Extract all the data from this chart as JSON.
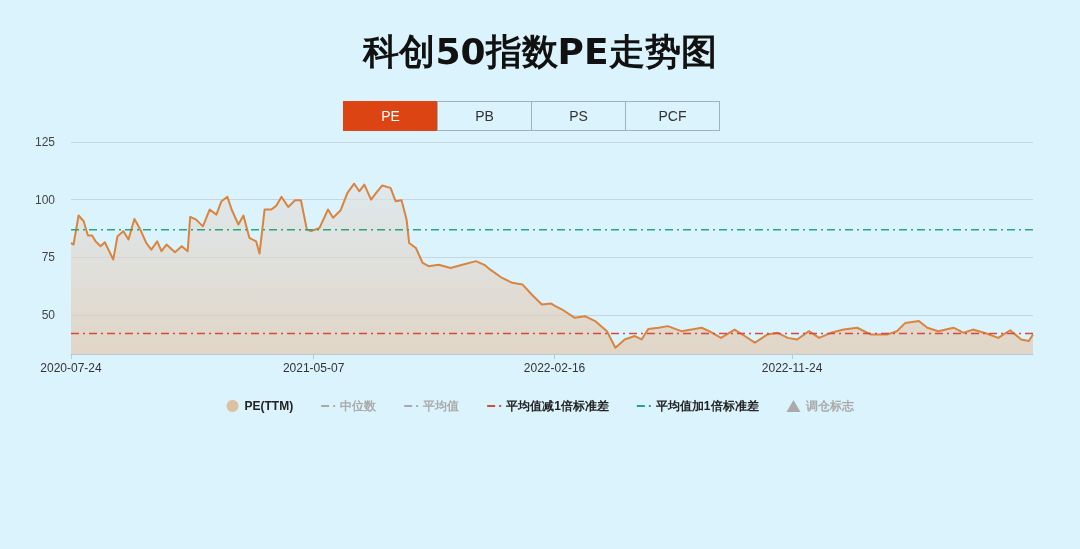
{
  "chart_data": {
    "type": "area",
    "title": "科创50指数PE走势图",
    "xlim": [
      "2020-07-24",
      "2023-09-05"
    ],
    "xticks": [
      "2020-07-24",
      "2021-05-07",
      "2022-02-16",
      "2022-11-24"
    ],
    "ylim": [
      33,
      125
    ],
    "yticks": [
      50,
      75,
      100,
      125
    ],
    "grid": "y",
    "legend": "bottom",
    "marker": "none",
    "line_style": "solid",
    "x": [
      "2020-07-24",
      "2020-07-27",
      "2020-08-02",
      "2020-08-08",
      "2020-08-13",
      "2020-08-18",
      "2020-08-22",
      "2020-08-28",
      "2020-09-02",
      "2020-09-12",
      "2020-09-17",
      "2020-09-24",
      "2020-09-30",
      "2020-10-07",
      "2020-10-14",
      "2020-10-21",
      "2020-10-27",
      "2020-11-03",
      "2020-11-08",
      "2020-11-14",
      "2020-11-24",
      "2020-12-02",
      "2020-12-09",
      "2020-12-12",
      "2020-12-19",
      "2020-12-27",
      "2021-01-04",
      "2021-01-12",
      "2021-01-18",
      "2021-01-25",
      "2021-01-30",
      "2021-02-07",
      "2021-02-13",
      "2021-02-20",
      "2021-02-28",
      "2021-03-04",
      "2021-03-10",
      "2021-03-18",
      "2021-03-24",
      "2021-03-30",
      "2021-04-07",
      "2021-04-15",
      "2021-04-22",
      "2021-04-29",
      "2021-05-04",
      "2021-05-14",
      "2021-05-24",
      "2021-05-30",
      "2021-06-08",
      "2021-06-16",
      "2021-06-24",
      "2021-06-30",
      "2021-07-06",
      "2021-07-14",
      "2021-07-20",
      "2021-07-27",
      "2021-08-06",
      "2021-08-12",
      "2021-08-19",
      "2021-08-25",
      "2021-08-28",
      "2021-09-05",
      "2021-09-13",
      "2021-09-20",
      "2021-10-02",
      "2021-10-16",
      "2021-10-30",
      "2021-11-15",
      "2021-11-25",
      "2021-12-02",
      "2021-12-16",
      "2021-12-28",
      "2022-01-09",
      "2022-01-20",
      "2022-02-01",
      "2022-02-12",
      "2022-02-17",
      "2022-02-25",
      "2022-03-12",
      "2022-03-24",
      "2022-04-05",
      "2022-04-19",
      "2022-04-29",
      "2022-05-10",
      "2022-05-22",
      "2022-05-30",
      "2022-06-07",
      "2022-06-19",
      "2022-06-30",
      "2022-07-16",
      "2022-07-28",
      "2022-08-09",
      "2022-08-18",
      "2022-09-01",
      "2022-09-17",
      "2022-09-29",
      "2022-10-11",
      "2022-10-26",
      "2022-11-07",
      "2022-11-19",
      "2022-11-30",
      "2022-12-14",
      "2022-12-26",
      "2023-01-09",
      "2023-01-24",
      "2023-02-09",
      "2023-02-25",
      "2023-03-17",
      "2023-03-28",
      "2023-04-07",
      "2023-04-23",
      "2023-05-03",
      "2023-05-16",
      "2023-06-03",
      "2023-06-15",
      "2023-06-26",
      "2023-07-12",
      "2023-07-26",
      "2023-08-09",
      "2023-08-22",
      "2023-08-31",
      "2023-09-05"
    ],
    "series": [
      {
        "name": "PE(TTM)",
        "color": "#d9843f",
        "values": [
          81.2,
          80.5,
          93.1,
          90.6,
          84.4,
          84.4,
          81.9,
          79.8,
          81.5,
          74,
          84.1,
          86.3,
          82.7,
          91.6,
          87,
          81.2,
          78.3,
          81.9,
          77.6,
          80.5,
          77.2,
          79.8,
          77.6,
          92.5,
          91.3,
          88.4,
          95.7,
          93.5,
          99.3,
          101.2,
          95.7,
          89.2,
          93.1,
          83.4,
          81.9,
          76.6,
          95.7,
          95.7,
          97.4,
          101.2,
          96.8,
          99.7,
          99.7,
          87,
          86.3,
          87.7,
          95.7,
          92.1,
          95.4,
          102.9,
          106.9,
          103.6,
          106.5,
          100,
          102.9,
          106.1,
          105.1,
          99.3,
          99.7,
          91.3,
          81.2,
          79,
          72.5,
          71.1,
          71.7,
          70.3,
          71.7,
          73.3,
          71.7,
          69.6,
          66,
          63.9,
          63.2,
          58.8,
          54.5,
          54.9,
          53.8,
          52.3,
          48.7,
          49.4,
          47.3,
          42.9,
          35.7,
          39.3,
          40.8,
          39.3,
          43.9,
          44.4,
          45.1,
          42.9,
          43.6,
          44.4,
          42.9,
          40,
          43.6,
          40.8,
          37.9,
          41.5,
          42.2,
          40,
          39.3,
          42.9,
          40,
          42.2,
          43.6,
          44.4,
          41.5,
          41.5,
          42.9,
          46.5,
          47.3,
          44.4,
          42.9,
          44.4,
          42.2,
          43.6,
          41.9,
          40,
          43.3,
          39.3,
          38.6,
          41.5
        ]
      }
    ],
    "ref_lines": [
      {
        "axis": "y",
        "value": 41.9,
        "label": "平均值减1倍标准差",
        "color": "#d9493a",
        "line_style": "dashdot"
      },
      {
        "axis": "y",
        "value": 86.9,
        "label": "平均值加1倍标准差",
        "color": "#2aa57a",
        "line_style": "dashdot"
      }
    ],
    "annotations": [
      "PE",
      "PB",
      "PS",
      "PCF",
      "中位数",
      "平均值",
      "调仓标志"
    ]
  }
}
